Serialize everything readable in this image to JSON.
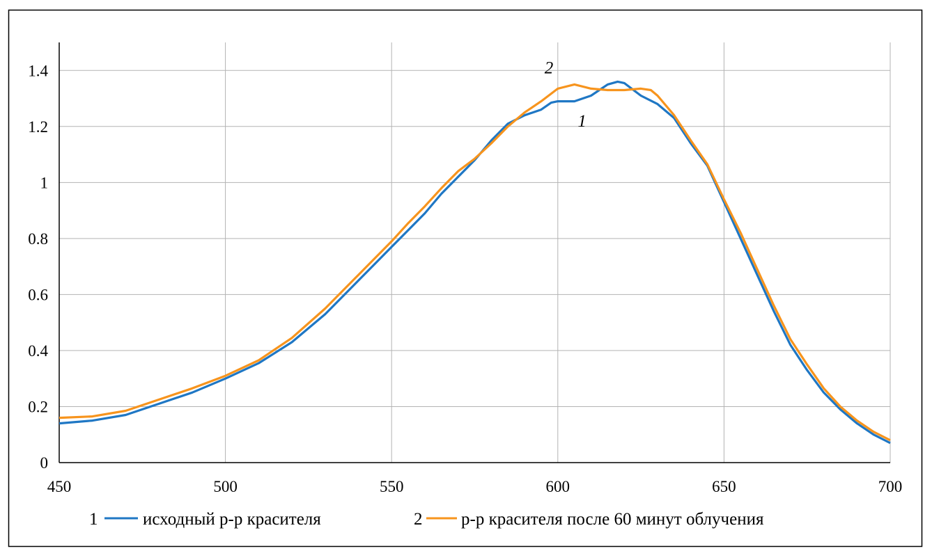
{
  "chart_data": {
    "type": "line",
    "title": "",
    "xlabel": "",
    "ylabel": "",
    "xlim": [
      450,
      700
    ],
    "ylim": [
      0,
      1.5
    ],
    "xticks": [
      "450",
      "500",
      "550",
      "600",
      "650",
      "700"
    ],
    "yticks": [
      "0",
      "0.2",
      "0.4",
      "0.6",
      "0.8",
      "1",
      "1.2",
      "1.4"
    ],
    "grid": true,
    "legend_position": "bottom",
    "series": [
      {
        "name": "исходный р-р красителя",
        "number": "1",
        "color": "#1f77c4",
        "x": [
          450,
          460,
          470,
          480,
          490,
          500,
          510,
          520,
          530,
          540,
          550,
          555,
          560,
          565,
          570,
          575,
          580,
          585,
          590,
          595,
          598,
          600,
          605,
          610,
          615,
          618,
          620,
          625,
          630,
          635,
          640,
          645,
          650,
          655,
          660,
          665,
          670,
          675,
          680,
          685,
          690,
          695,
          700
        ],
        "y": [
          0.14,
          0.15,
          0.17,
          0.21,
          0.25,
          0.3,
          0.355,
          0.43,
          0.53,
          0.65,
          0.77,
          0.83,
          0.89,
          0.96,
          1.02,
          1.08,
          1.15,
          1.21,
          1.24,
          1.26,
          1.285,
          1.29,
          1.29,
          1.31,
          1.35,
          1.36,
          1.355,
          1.31,
          1.28,
          1.23,
          1.14,
          1.06,
          0.93,
          0.8,
          0.67,
          0.54,
          0.42,
          0.33,
          0.25,
          0.19,
          0.14,
          0.1,
          0.07
        ]
      },
      {
        "name": "р-р красителя после 60 минут облучения",
        "number": "2",
        "color": "#f7941d",
        "x": [
          450,
          460,
          470,
          480,
          490,
          500,
          510,
          520,
          530,
          540,
          550,
          555,
          560,
          565,
          570,
          575,
          580,
          585,
          590,
          595,
          600,
          605,
          610,
          615,
          620,
          625,
          628,
          630,
          635,
          640,
          645,
          650,
          655,
          660,
          665,
          670,
          675,
          680,
          685,
          690,
          695,
          700
        ],
        "y": [
          0.16,
          0.165,
          0.185,
          0.225,
          0.265,
          0.31,
          0.365,
          0.445,
          0.55,
          0.67,
          0.79,
          0.855,
          0.915,
          0.98,
          1.04,
          1.085,
          1.14,
          1.2,
          1.25,
          1.29,
          1.335,
          1.35,
          1.335,
          1.33,
          1.33,
          1.335,
          1.33,
          1.31,
          1.24,
          1.15,
          1.065,
          0.94,
          0.82,
          0.69,
          0.56,
          0.44,
          0.35,
          0.265,
          0.2,
          0.15,
          0.11,
          0.08
        ]
      }
    ],
    "annotations": [
      {
        "text": "2",
        "x": 596,
        "y": 1.39
      },
      {
        "text": "1",
        "x": 606,
        "y": 1.2
      }
    ]
  }
}
